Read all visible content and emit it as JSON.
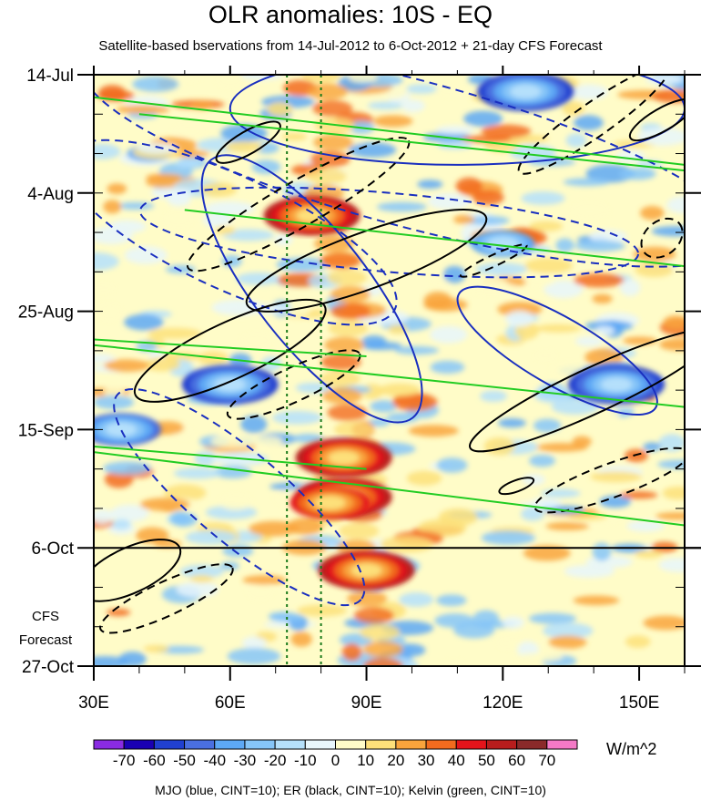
{
  "chart_data": {
    "type": "heatmap",
    "title": "OLR anomalies: 10S - EQ",
    "subtitle": "Satellite-based bservations from 14-Jul-2012 to 6-Oct-2012 + 21-day CFS Forecast",
    "xlabel": "",
    "ylabel": "",
    "xlim": [
      30,
      160
    ],
    "ylim_days": [
      0,
      105
    ],
    "x_ticks": [
      30,
      60,
      90,
      120,
      150
    ],
    "x_tick_labels": [
      "30E",
      "60E",
      "90E",
      "120E",
      "150E"
    ],
    "y_ticks": [
      0,
      21,
      42,
      63,
      84,
      105
    ],
    "y_tick_labels": [
      "14-Jul",
      "4-Aug",
      "25-Aug",
      "15-Sep",
      "6-Oct",
      "27-Oct"
    ],
    "observation_end_day": 84,
    "forecast_label": [
      "CFS",
      "Forecast"
    ],
    "reference_lines_lon": [
      72.5,
      80
    ],
    "colorbar": {
      "levels": [
        -70,
        -60,
        -50,
        -40,
        -30,
        -20,
        -10,
        0,
        10,
        20,
        30,
        40,
        50,
        60,
        70
      ],
      "labels": [
        "-70",
        "-60",
        "-50",
        "-40",
        "-30",
        "-20",
        "-10",
        "0",
        "10",
        "20",
        "30",
        "40",
        "50",
        "60",
        "70"
      ],
      "colors": [
        "#8a2be2",
        "#1a00b3",
        "#2040d0",
        "#4a6fe0",
        "#5da8f5",
        "#86c5f8",
        "#b5e0fb",
        "#e8f6fc",
        "#fffcc8",
        "#fde07a",
        "#f9a43c",
        "#f26b1e",
        "#e4141b",
        "#b81d1d",
        "#8a2a2a",
        "#f479c6"
      ],
      "units": "W/m^2"
    },
    "anomalies": [
      {
        "lon": 90,
        "day": 88,
        "value": 60
      },
      {
        "lon": 85,
        "day": 68,
        "value": 45
      },
      {
        "lon": 78,
        "day": 25,
        "value": 50
      },
      {
        "lon": 85,
        "day": 75,
        "value": 45
      },
      {
        "lon": 82,
        "day": 76,
        "value": 40
      },
      {
        "lon": 145,
        "day": 55,
        "value": -70
      },
      {
        "lon": 60,
        "day": 55,
        "value": -50
      },
      {
        "lon": 125,
        "day": 3,
        "value": -50
      },
      {
        "lon": 36,
        "day": 63,
        "value": -40
      },
      {
        "lon": 120,
        "day": 30,
        "value": -30
      }
    ],
    "contours": {
      "mjo": [
        {
          "cx": 60,
          "cy": 28,
          "rx": 40,
          "ry": 10,
          "angle": -155,
          "dashed": true
        },
        {
          "cx": 100,
          "cy": 14,
          "rx": 75,
          "ry": 13,
          "angle": 15,
          "dashed": true
        },
        {
          "cx": 110,
          "cy": 6,
          "rx": 50,
          "ry": 10,
          "angle": 0,
          "dashed": false
        },
        {
          "cx": 78,
          "cy": 38,
          "rx": 36,
          "ry": 10,
          "angle": 52,
          "dashed": false
        },
        {
          "cx": 95,
          "cy": 28,
          "rx": 55,
          "ry": 7,
          "angle": 5,
          "dashed": true
        },
        {
          "cx": 132,
          "cy": 49,
          "rx": 25,
          "ry": 6,
          "angle": 30,
          "dashed": false
        },
        {
          "cx": 62,
          "cy": 75,
          "rx": 35,
          "ry": 8,
          "angle": 40,
          "dashed": true
        }
      ],
      "er": [
        {
          "cx": 64,
          "cy": 12,
          "rx": 8,
          "ry": 2,
          "angle": -30,
          "dashed": false
        },
        {
          "cx": 75,
          "cy": 23,
          "rx": 28,
          "ry": 4,
          "angle": -30,
          "dashed": true
        },
        {
          "cx": 90,
          "cy": 33,
          "rx": 28,
          "ry": 5,
          "angle": -20,
          "dashed": false
        },
        {
          "cx": 60,
          "cy": 49,
          "rx": 23,
          "ry": 5,
          "angle": -25,
          "dashed": false
        },
        {
          "cx": 74,
          "cy": 55,
          "rx": 16,
          "ry": 3,
          "angle": -25,
          "dashed": true
        },
        {
          "cx": 118,
          "cy": 33,
          "rx": 8,
          "ry": 1,
          "angle": -25,
          "dashed": true
        },
        {
          "cx": 140,
          "cy": 8,
          "rx": 20,
          "ry": 3,
          "angle": -35,
          "dashed": true
        },
        {
          "cx": 155,
          "cy": 8,
          "rx": 8,
          "ry": 2,
          "angle": -30,
          "dashed": false
        },
        {
          "cx": 140,
          "cy": 56,
          "rx": 30,
          "ry": 4,
          "angle": -25,
          "dashed": false
        },
        {
          "cx": 144,
          "cy": 72,
          "rx": 18,
          "ry": 3,
          "angle": -20,
          "dashed": true
        },
        {
          "cx": 155,
          "cy": 29,
          "rx": 5,
          "ry": 3,
          "angle": -40,
          "dashed": true
        },
        {
          "cx": 123,
          "cy": 73,
          "rx": 4,
          "ry": 1,
          "angle": -20,
          "dashed": false
        },
        {
          "cx": 38,
          "cy": 88,
          "rx": 12,
          "ry": 4,
          "angle": -25,
          "dashed": false
        },
        {
          "cx": 46,
          "cy": 93,
          "rx": 16,
          "ry": 3,
          "angle": -25,
          "dashed": true
        }
      ],
      "kelvin": [
        {
          "x1": 30,
          "y1": 4,
          "x2": 160,
          "y2": 16
        },
        {
          "x1": 40,
          "y1": 7,
          "x2": 160,
          "y2": 17
        },
        {
          "x1": 50,
          "y1": 24,
          "x2": 160,
          "y2": 34
        },
        {
          "x1": 30,
          "y1": 47,
          "x2": 90,
          "y2": 50
        },
        {
          "x1": 30,
          "y1": 48,
          "x2": 160,
          "y2": 59
        },
        {
          "x1": 30,
          "y1": 66,
          "x2": 90,
          "y2": 70
        },
        {
          "x1": 30,
          "y1": 67,
          "x2": 160,
          "y2": 80
        }
      ]
    },
    "footer": "MJO (blue, CINT=10); ER (black, CINT=10); Kelvin (green, CINT=10)"
  }
}
